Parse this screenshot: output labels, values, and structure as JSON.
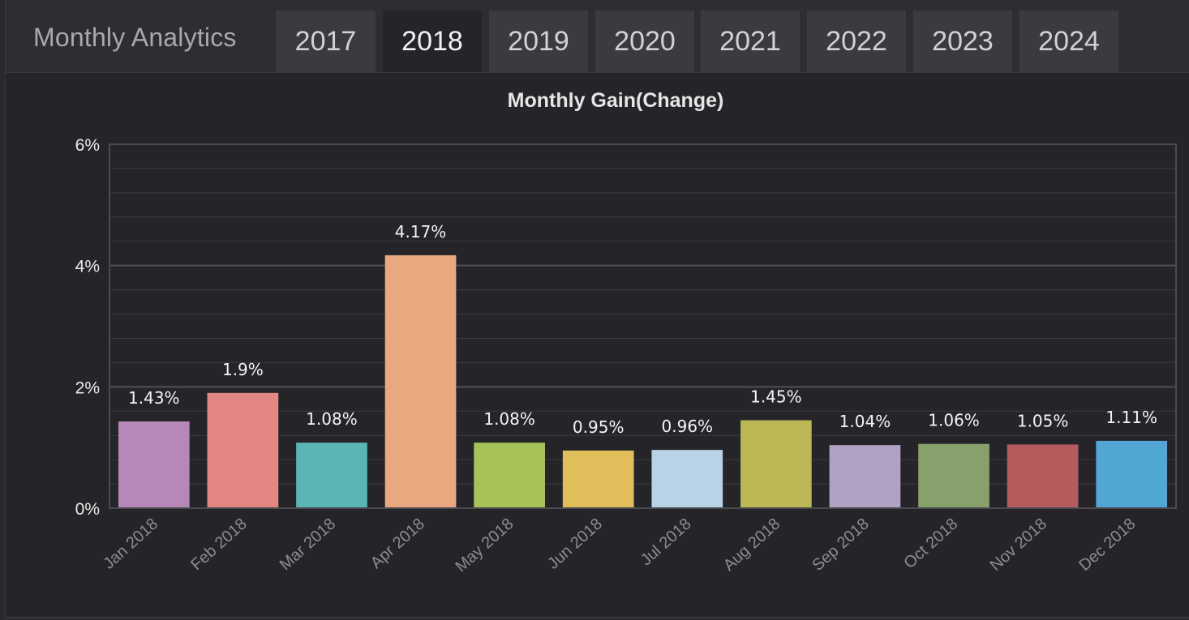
{
  "header": {
    "app_title": "Monthly Analytics",
    "tabs": [
      {
        "label": "2017",
        "active": false
      },
      {
        "label": "2018",
        "active": true
      },
      {
        "label": "2019",
        "active": false
      },
      {
        "label": "2020",
        "active": false
      },
      {
        "label": "2021",
        "active": false
      },
      {
        "label": "2022",
        "active": false
      },
      {
        "label": "2023",
        "active": false
      },
      {
        "label": "2024",
        "active": false
      }
    ]
  },
  "chart_data": {
    "type": "bar",
    "title": "Monthly Gain(Change)",
    "xlabel": "",
    "ylabel": "",
    "ylim": [
      0,
      6
    ],
    "yticks": [
      "0%",
      "2%",
      "4%",
      "6%"
    ],
    "grid": true,
    "categories": [
      "Jan 2018",
      "Feb 2018",
      "Mar 2018",
      "Apr 2018",
      "May 2018",
      "Jun 2018",
      "Jul 2018",
      "Aug 2018",
      "Sep 2018",
      "Oct 2018",
      "Nov 2018",
      "Dec 2018"
    ],
    "values": [
      1.43,
      1.9,
      1.08,
      4.17,
      1.08,
      0.95,
      0.96,
      1.45,
      1.04,
      1.06,
      1.05,
      1.11
    ],
    "data_labels": [
      "1.43%",
      "1.9%",
      "1.08%",
      "4.17%",
      "1.08%",
      "0.95%",
      "0.96%",
      "1.45%",
      "1.04%",
      "1.06%",
      "1.05%",
      "1.11%"
    ],
    "colors": [
      "#b687b7",
      "#e38783",
      "#5bb5b5",
      "#e9a880",
      "#a8c25a",
      "#e2be5a",
      "#b9d2e6",
      "#bcb755",
      "#b1a1c4",
      "#87a06c",
      "#b45c5d",
      "#52a6d3"
    ]
  }
}
